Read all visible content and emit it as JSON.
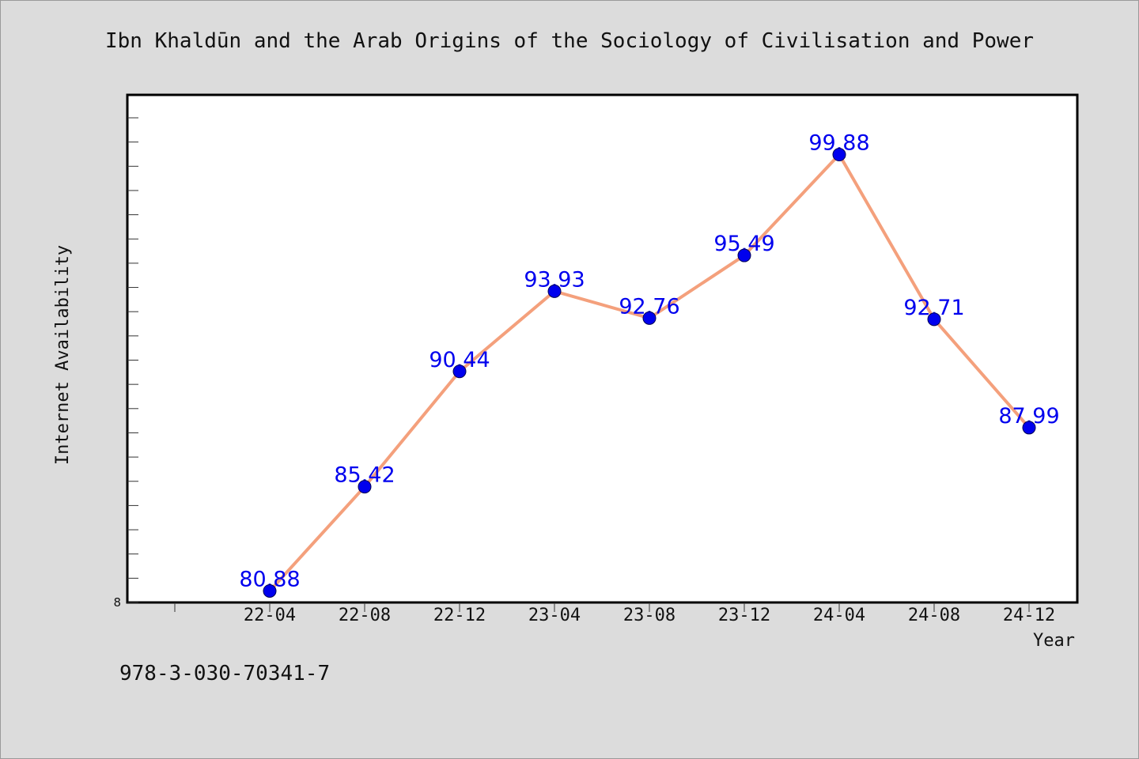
{
  "chart_data": {
    "type": "line",
    "title": "Ibn Khaldūn and the Arab Origins of the Sociology of Civilisation and Power",
    "xlabel": "Year",
    "ylabel": "Internet Availability",
    "categories": [
      "22-04",
      "22-08",
      "22-12",
      "23-04",
      "23-08",
      "23-12",
      "24-04",
      "24-08",
      "24-12"
    ],
    "series": [
      {
        "values": [
          80.88,
          85.42,
          90.44,
          93.93,
          92.76,
          95.49,
          99.88,
          92.71,
          87.99
        ],
        "labels": [
          "80.88",
          "85.42",
          "90.44",
          "93.93",
          "92.76",
          "95.49",
          "99.88",
          "92.71",
          "87.99"
        ]
      }
    ],
    "ylim": [
      80.38,
      102.48
    ],
    "y_tick_labels": [
      "8"
    ],
    "grid": false,
    "legend": "none",
    "colors": {
      "line": "#f4a07c",
      "marker": "#0000ee",
      "data_label": "#0000ee",
      "background": "#dcdcdc",
      "plot_area": "#ffffff"
    }
  },
  "footer": {
    "code": "978-3-030-70341-7"
  }
}
